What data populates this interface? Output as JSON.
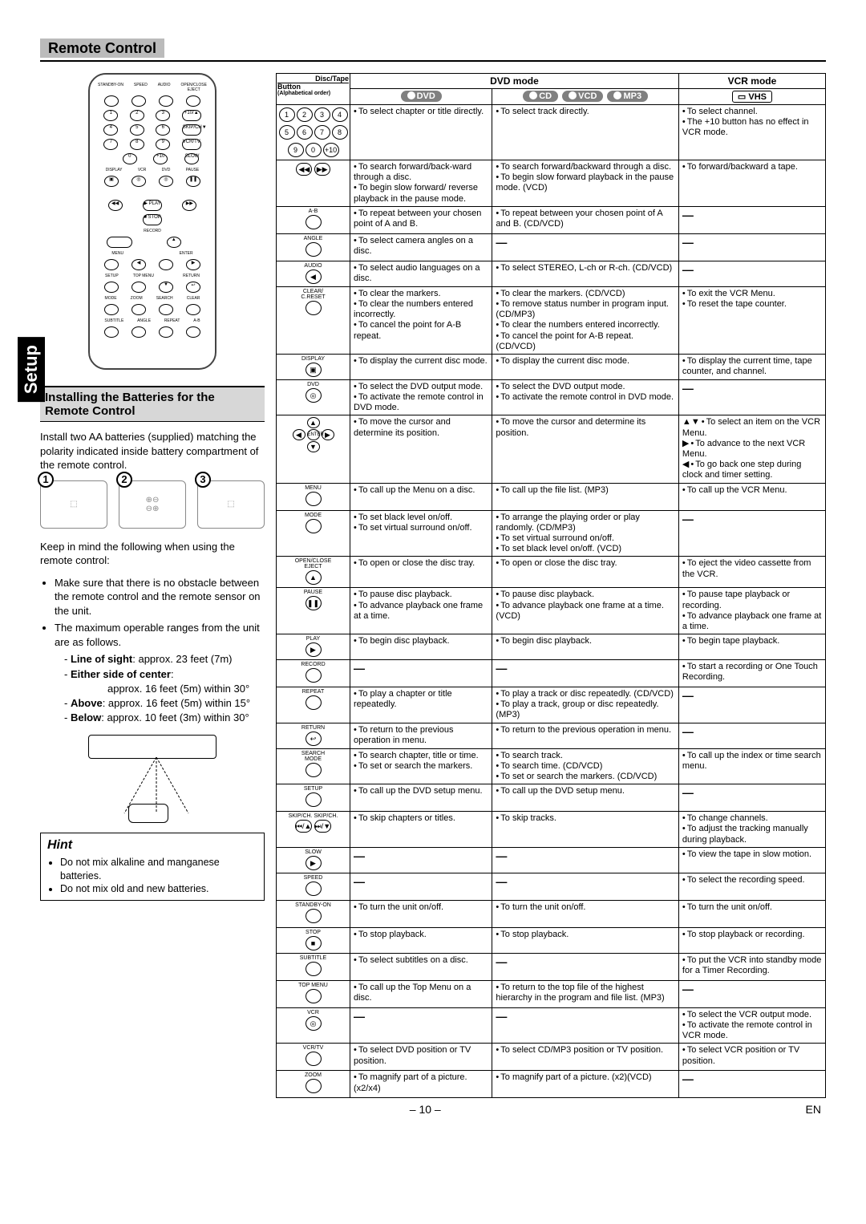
{
  "title": "Remote Control",
  "setup_tab": "Setup",
  "subheader": "Installing the Batteries for the Remote Control",
  "intro1": "Install two AA batteries (supplied) matching the polarity indicated inside battery compartment of the remote control.",
  "intro2": "Keep in mind the following when using the remote control:",
  "bullets": [
    "Make sure that there is no obstacle between the remote control and the remote sensor on the unit.",
    "The maximum operable ranges from the unit are as follows."
  ],
  "ranges": [
    {
      "label": "Line of sight",
      "val": ": approx. 23 feet (7m)"
    },
    {
      "label": "Either side of center",
      "val": ":"
    },
    {
      "label": "",
      "val": "approx. 16 feet (5m) within 30°",
      "indent": true
    },
    {
      "label": "Above",
      "val": ": approx. 16 feet (5m) within 15°"
    },
    {
      "label": "Below",
      "val": ": approx. 10 feet (3m) within 30°"
    }
  ],
  "hint_title": "Hint",
  "hints": [
    "Do not mix alkaline and manganese batteries.",
    "Do not mix old and new batteries."
  ],
  "table": {
    "hdr_button": "Button",
    "hdr_disctape": "Disc/Tape",
    "hdr_alpha": "(Alphabetical order)",
    "hdr_dvdmode": "DVD mode",
    "hdr_vcrmode": "VCR mode",
    "pill_dvd": "DVD",
    "pill_cd": "CD",
    "pill_vcd": "VCD",
    "pill_mp3": "MP3",
    "pill_vhs": "VHS",
    "rows": [
      {
        "btn": "numpad",
        "c1": [
          "To select chapter or title directly."
        ],
        "c2": [
          "To select track directly."
        ],
        "c3": [
          "To select channel.",
          "The +10 button has no effect in VCR mode."
        ]
      },
      {
        "btn": "rewff",
        "c1": [
          "To search forward/back-ward through a disc.",
          "To begin slow forward/ reverse playback in the pause mode."
        ],
        "c2": [
          "To search forward/backward through a disc.",
          "To begin slow forward playback in the pause mode. (VCD)"
        ],
        "c3": [
          "To forward/backward a tape."
        ]
      },
      {
        "btn": "A-B",
        "c1": [
          "To repeat between your chosen point of A and B."
        ],
        "c2": [
          "To repeat between your chosen point of A and B. (CD/VCD)"
        ],
        "c3": "-"
      },
      {
        "btn": "ANGLE",
        "c1": [
          "To select camera angles on a disc."
        ],
        "c2": "-",
        "c3": "-"
      },
      {
        "btn": "AUDIO",
        "c1": [
          "To select audio languages on a disc."
        ],
        "c2": [
          "To select STEREO, L-ch or R-ch. (CD/VCD)"
        ],
        "c3": "-"
      },
      {
        "btn": "CLEAR/\nC.RESET",
        "c1": [
          "To clear the markers.",
          "To clear the numbers entered incorrectly.",
          "To cancel the point for A-B repeat."
        ],
        "c2": [
          "To clear the markers. (CD/VCD)",
          "To remove status number in program input. (CD/MP3)",
          "To clear the numbers entered incorrectly.",
          "To cancel the point for A-B repeat. (CD/VCD)"
        ],
        "c3": [
          "To exit the VCR Menu.",
          "To reset the tape counter."
        ]
      },
      {
        "btn": "DISPLAY",
        "c1": [
          "To display the current disc mode."
        ],
        "c2": [
          "To display the current disc mode."
        ],
        "c3": [
          "To display the current time, tape counter, and channel."
        ]
      },
      {
        "btn": "DVD",
        "c1": [
          "To select the DVD output mode.",
          "To activate the remote control in DVD mode."
        ],
        "c2": [
          "To select the DVD output mode.",
          "To activate the remote control in DVD mode."
        ],
        "c3": "-"
      },
      {
        "btn": "ENTER\n(arrows)",
        "c1": [
          "To move the cursor and determine its position."
        ],
        "c2": [
          "To move the cursor and determine its position."
        ],
        "c3": [
          "To select an item on the VCR Menu.",
          "To advance to the next VCR Menu.",
          "To go back one step during clock and timer setting."
        ],
        "c3arrows": true
      },
      {
        "btn": "MENU",
        "c1": [
          "To call up the Menu on a disc."
        ],
        "c2": [
          "To call up the file list. (MP3)"
        ],
        "c3": [
          "To call up the VCR Menu."
        ]
      },
      {
        "btn": "MODE",
        "c1": [
          "To set black level on/off.",
          "To set virtual surround on/off."
        ],
        "c2": [
          "To arrange the playing order or play randomly. (CD/MP3)",
          "To set virtual surround on/off.",
          "To set black level on/off. (VCD)"
        ],
        "c3": "-"
      },
      {
        "btn": "OPEN/CLOSE\nEJECT",
        "c1": [
          "To open or close the disc tray."
        ],
        "c2": [
          "To open or close the disc tray."
        ],
        "c3": [
          "To eject the video cassette from the VCR."
        ]
      },
      {
        "btn": "PAUSE",
        "c1": [
          "To pause disc playback.",
          "To advance playback one frame at a time."
        ],
        "c2": [
          "To pause disc playback.",
          "To advance playback one frame at a time. (VCD)"
        ],
        "c3": [
          "To pause tape playback or recording.",
          "To advance playback one frame at a time."
        ]
      },
      {
        "btn": "PLAY",
        "c1": [
          "To begin disc playback."
        ],
        "c2": [
          "To begin disc playback."
        ],
        "c3": [
          "To begin tape playback."
        ]
      },
      {
        "btn": "RECORD",
        "c1": "-",
        "c2": "-",
        "c3": [
          "To start a recording or One Touch Recording."
        ]
      },
      {
        "btn": "REPEAT",
        "c1": [
          "To play a chapter or title repeatedly."
        ],
        "c2": [
          "To play a track or disc repeatedly. (CD/VCD)",
          "To play a track, group or disc repeatedly. (MP3)"
        ],
        "c3": "-"
      },
      {
        "btn": "RETURN",
        "c1": [
          "To return to the previous operation in menu."
        ],
        "c2": [
          "To return to the previous operation in menu."
        ],
        "c3": "-"
      },
      {
        "btn": "SEARCH\nMODE",
        "c1": [
          "To search chapter, title or time.",
          "To set or search the markers."
        ],
        "c2": [
          "To search track.",
          "To search time. (CD/VCD)",
          "To set or search the markers. (CD/VCD)"
        ],
        "c3": [
          "To call up the index or time search menu."
        ]
      },
      {
        "btn": "SETUP",
        "c1": [
          "To call up the DVD setup menu."
        ],
        "c2": [
          "To call up the DVD setup menu."
        ],
        "c3": "-"
      },
      {
        "btn": "SKIP/CH.",
        "c1": [
          "To skip chapters or titles."
        ],
        "c2": [
          "To skip tracks."
        ],
        "c3": [
          "To change channels.",
          "To adjust the tracking manually during playback."
        ]
      },
      {
        "btn": "SLOW",
        "c1": "-",
        "c2": "-",
        "c3": [
          "To view the tape in slow motion."
        ]
      },
      {
        "btn": "SPEED",
        "c1": "-",
        "c2": "-",
        "c3": [
          "To select the recording speed."
        ]
      },
      {
        "btn": "STANDBY-ON",
        "c1": [
          "To turn the unit on/off."
        ],
        "c2": [
          "To turn the unit on/off."
        ],
        "c3": [
          "To turn the unit on/off."
        ]
      },
      {
        "btn": "STOP",
        "c1": [
          "To stop playback."
        ],
        "c2": [
          "To stop playback."
        ],
        "c3": [
          "To stop playback or recording."
        ]
      },
      {
        "btn": "SUBTITLE",
        "c1": [
          "To select subtitles on a disc."
        ],
        "c2": "-",
        "c3": [
          "To put the VCR into standby mode for a Timer Recording."
        ]
      },
      {
        "btn": "TOP MENU",
        "c1": [
          "To call up the Top Menu on a disc."
        ],
        "c2": [
          "To return to the top file of the highest hierarchy in the program and file list. (MP3)"
        ],
        "c3": "-"
      },
      {
        "btn": "VCR",
        "c1": "-",
        "c2": "-",
        "c3": [
          "To select the VCR output mode.",
          "To activate the remote control in VCR mode."
        ]
      },
      {
        "btn": "VCR/TV",
        "c1": [
          "To select DVD position or TV position."
        ],
        "c2": [
          "To select CD/MP3 position or TV position."
        ],
        "c3": [
          "To select VCR position or TV position."
        ]
      },
      {
        "btn": "ZOOM",
        "c1": [
          "To magnify part of a picture. (x2/x4)"
        ],
        "c2": [
          "To magnify part of a picture. (x2)(VCD)"
        ],
        "c3": "-"
      }
    ]
  },
  "page_num": "– 10 –",
  "page_lang": "EN"
}
